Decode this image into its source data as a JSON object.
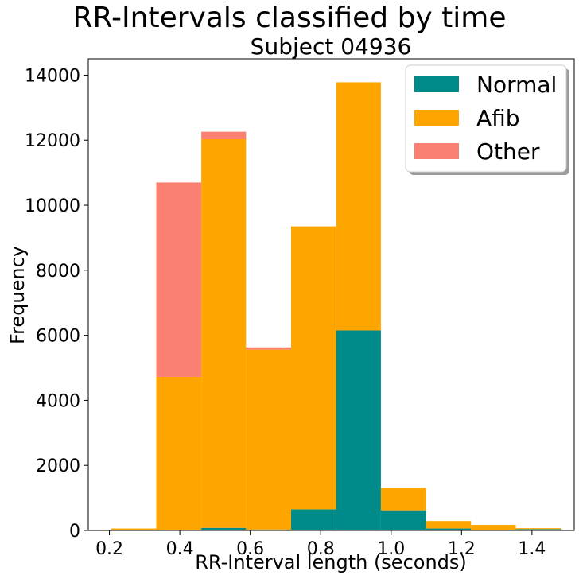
{
  "chart_data": {
    "type": "bar",
    "stacked": true,
    "suptitle": "RR-Intervals classified by time",
    "title": "Subject 04936",
    "xlabel": "RR-Interval length (seconds)",
    "ylabel": "Frequency",
    "xlim": [
      0.14,
      1.52
    ],
    "ylim": [
      0,
      14500
    ],
    "x_ticks": [
      "0.2",
      "0.4",
      "0.6",
      "0.8",
      "1.0",
      "1.2",
      "1.4"
    ],
    "y_ticks": [
      "0",
      "2000",
      "4000",
      "6000",
      "8000",
      "10000",
      "12000",
      "14000"
    ],
    "bins": [
      [
        0.205,
        0.333
      ],
      [
        0.333,
        0.461
      ],
      [
        0.461,
        0.588
      ],
      [
        0.588,
        0.716
      ],
      [
        0.716,
        0.844
      ],
      [
        0.844,
        0.971
      ],
      [
        0.971,
        1.099
      ],
      [
        1.099,
        1.227
      ],
      [
        1.227,
        1.354
      ],
      [
        1.354,
        1.482
      ]
    ],
    "series": [
      {
        "name": "Normal",
        "color": "#008b8b",
        "values": [
          0,
          0,
          80,
          30,
          650,
          6150,
          620,
          60,
          20,
          40
        ]
      },
      {
        "name": "Afib",
        "color": "#ffa500",
        "values": [
          60,
          4720,
          11950,
          5530,
          8700,
          7630,
          690,
          230,
          150,
          30
        ]
      },
      {
        "name": "Other",
        "color": "#fa8072",
        "values": [
          0,
          5980,
          230,
          70,
          0,
          0,
          0,
          0,
          0,
          0
        ]
      }
    ],
    "legend": {
      "position": "top-right"
    },
    "grid": false
  }
}
